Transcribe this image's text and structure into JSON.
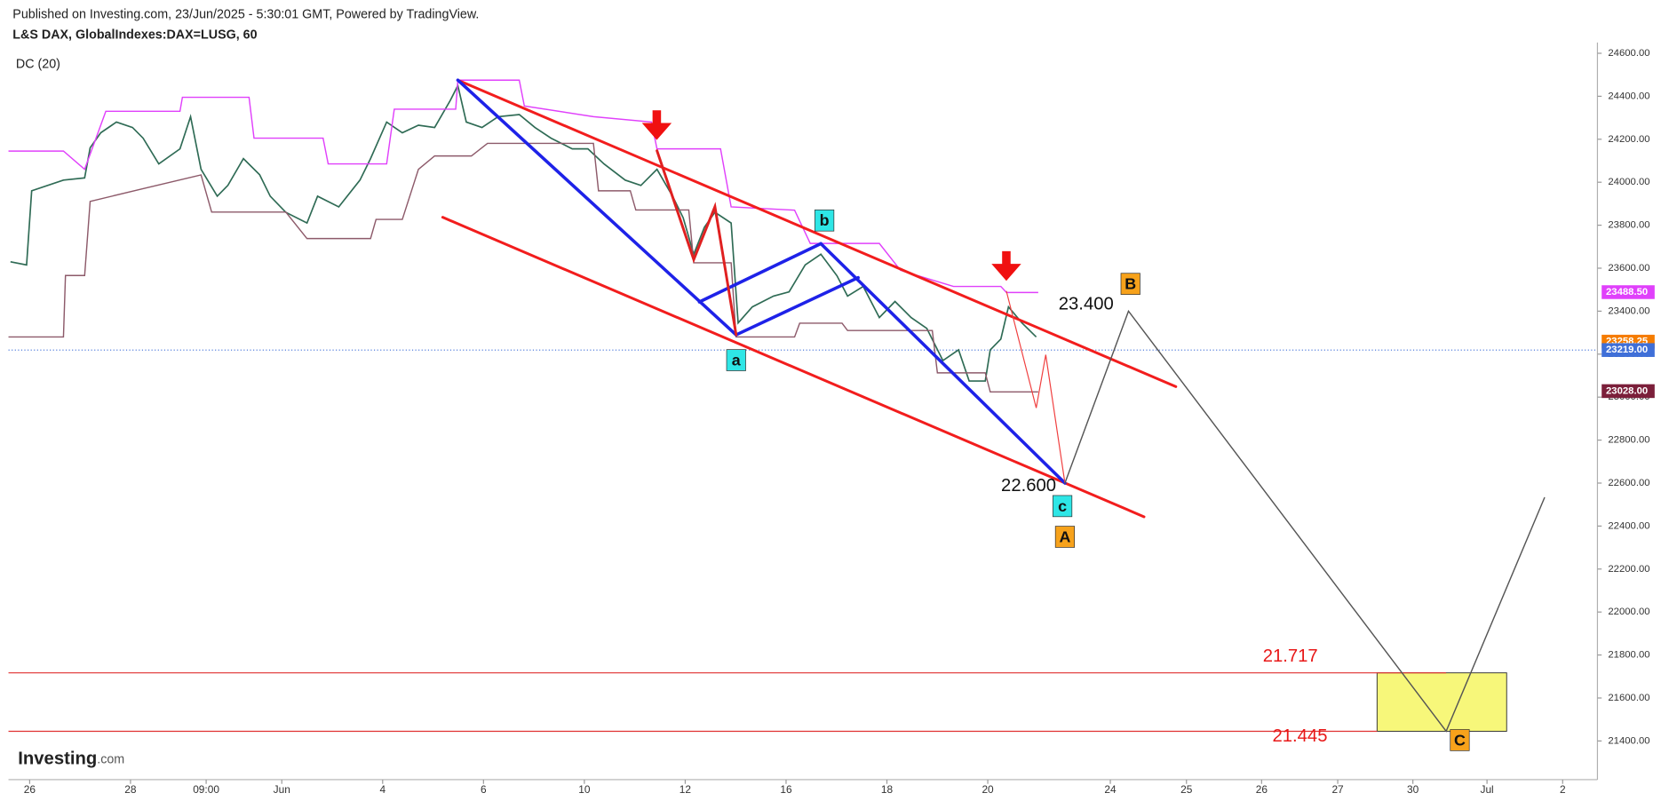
{
  "chart_data": {
    "type": "line",
    "published": "Published on Investing.com, 23/Jun/2025 - 5:30:01 GMT, Powered by TradingView.",
    "title": "L&S DAX, GlobalIndexes:DAX=LUSG, 60",
    "indicator": "DC (20)",
    "logo": "Investing",
    "logo_domain": ".com",
    "xlim": [
      -5.42,
      26.09
    ],
    "ylim": [
      21220,
      24650
    ],
    "xticks": [
      {
        "value": -5,
        "label": "26"
      },
      {
        "value": -3,
        "label": "28"
      },
      {
        "value": -1.5,
        "label": "09:00"
      },
      {
        "value": 0,
        "label": "Jun"
      },
      {
        "value": 2,
        "label": "4"
      },
      {
        "value": 4,
        "label": "6"
      },
      {
        "value": 6,
        "label": "10"
      },
      {
        "value": 8,
        "label": "12"
      },
      {
        "value": 10,
        "label": "16"
      },
      {
        "value": 12,
        "label": "18"
      },
      {
        "value": 14,
        "label": "20"
      },
      {
        "value": 16.43,
        "label": "24"
      },
      {
        "value": 17.94,
        "label": "25"
      },
      {
        "value": 19.43,
        "label": "26"
      },
      {
        "value": 20.94,
        "label": "27"
      },
      {
        "value": 22.43,
        "label": "30"
      },
      {
        "value": 23.9,
        "label": "Jul"
      },
      {
        "value": 25.4,
        "label": "2"
      }
    ],
    "yticks": [
      {
        "value": 21400,
        "label": "21400.00"
      },
      {
        "value": 21600,
        "label": "21600.00"
      },
      {
        "value": 21800,
        "label": "21800.00"
      },
      {
        "value": 22000,
        "label": "22000.00"
      },
      {
        "value": 22200,
        "label": "22200.00"
      },
      {
        "value": 22400,
        "label": "22400.00"
      },
      {
        "value": 22600,
        "label": "22600.00"
      },
      {
        "value": 22800,
        "label": "22800.00"
      },
      {
        "value": 23000,
        "label": "23000.00"
      },
      {
        "value": 23200,
        "label": "23200.00"
      },
      {
        "value": 23400,
        "label": "23400.00"
      },
      {
        "value": 23600,
        "label": "23600.00"
      },
      {
        "value": 23800,
        "label": "23800.00"
      },
      {
        "value": 24000,
        "label": "24000.00"
      },
      {
        "value": 24200,
        "label": "24200.00"
      },
      {
        "value": 24400,
        "label": "24400.00"
      },
      {
        "value": 24600,
        "label": "24600.00"
      }
    ],
    "series": [
      {
        "color": "#2f6b55",
        "x": [
          -5.38,
          -5.06,
          -4.96,
          -4.33,
          -3.91,
          -3.8,
          -3.59,
          -3.28,
          -2.96,
          -2.75,
          -2.44,
          -2.02,
          -1.81,
          -1.6,
          -1.28,
          -1.07,
          -0.76,
          -0.44,
          -0.23,
          0.08,
          0.5,
          0.71,
          1.13,
          1.55,
          1.76,
          2.08,
          2.39,
          2.71,
          3.03,
          3.34,
          3.49,
          3.66,
          3.97,
          4.29,
          4.71,
          5.02,
          5.34,
          5.76,
          6.07,
          6.39,
          6.81,
          7.12,
          7.44,
          7.75,
          7.96,
          8.17,
          8.38,
          8.59,
          8.91,
          9.05,
          9.33,
          9.75,
          10.06,
          10.38,
          10.69,
          11.01,
          11.22,
          11.53,
          11.85,
          12.16,
          12.48,
          12.79,
          13.11,
          13.42,
          13.63,
          13.95,
          14.05,
          14.26,
          14.41,
          14.68,
          14.96
        ],
        "values": [
          23630,
          23615,
          23960,
          24010,
          24020,
          24160,
          24230,
          24280,
          24255,
          24205,
          24085,
          24155,
          24305,
          24060,
          23935,
          23985,
          24110,
          24035,
          23935,
          23860,
          23810,
          23935,
          23885,
          24010,
          24110,
          24280,
          24230,
          24265,
          24255,
          24380,
          24450,
          24280,
          24255,
          24305,
          24315,
          24255,
          24205,
          24155,
          24155,
          24085,
          24010,
          23985,
          24060,
          23935,
          23835,
          23665,
          23790,
          23860,
          23810,
          23345,
          23420,
          23470,
          23490,
          23615,
          23665,
          23565,
          23470,
          23515,
          23370,
          23445,
          23370,
          23320,
          23170,
          23220,
          23075,
          23075,
          23220,
          23270,
          23420,
          23345,
          23280
        ]
      },
      {
        "color": "#e040fb",
        "x": [
          -5.42,
          -4.33,
          -3.91,
          -3.49,
          -2.02,
          -1.97,
          -0.65,
          -0.55,
          0.82,
          0.92,
          2.08,
          2.23,
          3.45,
          3.49,
          4.71,
          4.81,
          6.18,
          7.33,
          7.44,
          8.7,
          8.91,
          10.17,
          10.48,
          11.85,
          12.27,
          13.32,
          14.26,
          14.37,
          15.0
        ],
        "values": [
          24145,
          24145,
          24060,
          24330,
          24330,
          24395,
          24395,
          24205,
          24205,
          24085,
          24085,
          24340,
          24340,
          24475,
          24475,
          24355,
          24305,
          24280,
          24155,
          24155,
          23885,
          23870,
          23715,
          23715,
          23590,
          23515,
          23515,
          23487,
          23487
        ]
      },
      {
        "color": "#8d5a6a",
        "x": [
          -5.42,
          -4.33,
          -4.29,
          -3.91,
          -3.8,
          -2.75,
          -1.6,
          -1.39,
          0.08,
          0.5,
          1.76,
          1.87,
          2.39,
          2.71,
          3.03,
          3.76,
          4.08,
          6.18,
          6.28,
          6.91,
          7.02,
          8.07,
          8.17,
          8.91,
          9.01,
          10.17,
          10.27,
          11.11,
          11.22,
          12.9,
          13.0,
          13.95,
          14.05,
          15.0
        ],
        "values": [
          23280,
          23280,
          23566,
          23566,
          23911,
          23970,
          24034,
          23861,
          23861,
          23738,
          23738,
          23827,
          23827,
          24060,
          24122,
          24122,
          24181,
          24181,
          23960,
          23960,
          23871,
          23871,
          23625,
          23625,
          23280,
          23280,
          23344,
          23344,
          23310,
          23310,
          23113,
          23113,
          23024,
          23024
        ]
      }
    ],
    "price_labels": [
      {
        "value": 23488.5,
        "label": "23488.50",
        "color": "#e040fb"
      },
      {
        "value": 23258.25,
        "label": "23258.25",
        "color": "#f57c00"
      },
      {
        "value": 23219,
        "label": "23219.00",
        "color": "#3f6fd8",
        "dotted": true
      },
      {
        "value": 23028,
        "label": "23028.00",
        "color": "#7b1f3a"
      }
    ],
    "drawings": [
      {
        "color": "#f21d1d",
        "width": 2.5,
        "points": [
          [
            3.49,
            24475
          ],
          [
            17.73,
            23049
          ]
        ]
      },
      {
        "color": "#f21d1d",
        "width": 2.5,
        "points": [
          [
            3.19,
            23837
          ],
          [
            17.1,
            22443
          ]
        ]
      },
      {
        "color": "#1e22e8",
        "width": 3,
        "points": [
          [
            3.49,
            24475
          ],
          [
            9.01,
            23290
          ]
        ]
      },
      {
        "color": "#1e22e8",
        "width": 3,
        "points": [
          [
            8.28,
            23443
          ],
          [
            10.69,
            23714
          ]
        ]
      },
      {
        "color": "#1e22e8",
        "width": 3,
        "points": [
          [
            9.01,
            23290
          ],
          [
            11.43,
            23556
          ]
        ]
      },
      {
        "color": "#1e22e8",
        "width": 3,
        "points": [
          [
            10.69,
            23714
          ],
          [
            15.53,
            22600
          ]
        ]
      },
      {
        "color": "#e02020",
        "width": 2.5,
        "points": [
          [
            7.44,
            24147
          ],
          [
            8.17,
            23640
          ],
          [
            8.59,
            23886
          ],
          [
            9.01,
            23290
          ]
        ]
      },
      {
        "color": "#f04040",
        "width": 1,
        "points": [
          [
            14.37,
            23492
          ],
          [
            14.96,
            22950
          ],
          [
            15.15,
            23197
          ],
          [
            15.53,
            22600
          ]
        ]
      },
      {
        "color": "#555555",
        "width": 1.2,
        "points": [
          [
            15.53,
            22600
          ],
          [
            16.79,
            23400
          ],
          [
            23.09,
            21445
          ],
          [
            25.04,
            22532
          ]
        ]
      }
    ],
    "levels": [
      {
        "value": 21717,
        "end": 23.09,
        "color": "#e03030"
      },
      {
        "value": 21445,
        "end": 21.72,
        "color": "#e03030"
      }
    ],
    "zone": {
      "x": [
        21.72,
        24.29
      ],
      "y": [
        21445,
        21717
      ],
      "color": "#f7f77a"
    },
    "annotations": [
      {
        "label": "23.400",
        "value": 23400,
        "x": 15.95,
        "color": "#111111"
      },
      {
        "label": "22.600",
        "value": 22600,
        "x": 14.81,
        "color": "#111111"
      },
      {
        "label": "21.717",
        "value": 21717,
        "x": 20.0,
        "color": "#e81818"
      },
      {
        "label": "21.445",
        "value": 21445,
        "x": 20.19,
        "color": "#e81818"
      }
    ],
    "wave_labels": [
      {
        "label": "a",
        "x": 9.01,
        "y": 23172,
        "color": "#2ee6e6"
      },
      {
        "label": "b",
        "x": 10.76,
        "y": 23822,
        "color": "#2ee6e6"
      },
      {
        "label": "c",
        "x": 15.48,
        "y": 22493,
        "color": "#2ee6e6"
      },
      {
        "label": "A",
        "x": 15.53,
        "y": 22350,
        "color": "#f7a21b"
      },
      {
        "label": "B",
        "x": 16.83,
        "y": 23527,
        "color": "#f7a21b"
      },
      {
        "label": "C",
        "x": 23.36,
        "y": 21404,
        "color": "#f7a21b"
      }
    ]
  }
}
